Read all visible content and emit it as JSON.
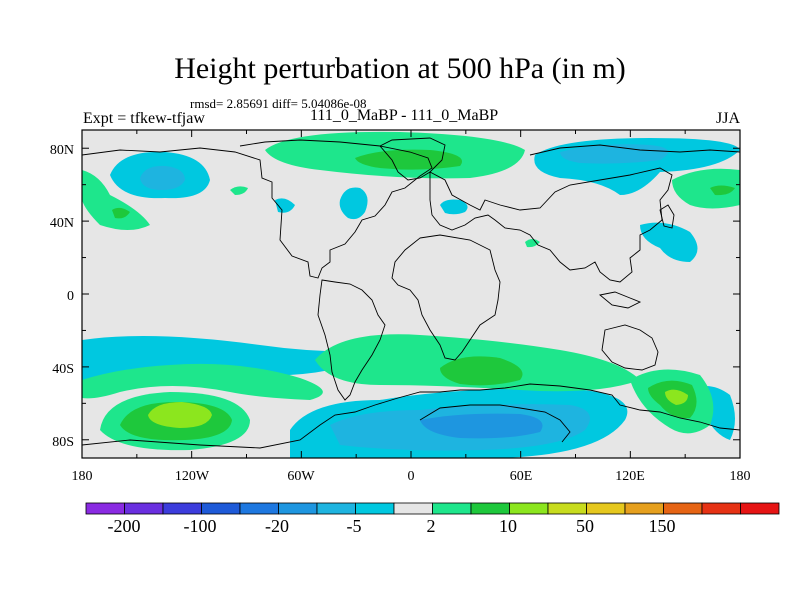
{
  "title": "Height perturbation at 500 hPa (in m)",
  "stats": "rmsd= 2.85691 diff= 5.04086e-08",
  "left_label": "Expt = tfkew-tfjaw",
  "center_label": "111_0_MaBP - 111_0_MaBP",
  "right_label": "JJA",
  "lat_ticks": [
    "80N",
    "40N",
    "0",
    "40S",
    "80S"
  ],
  "lon_ticks": [
    "180",
    "120W",
    "60W",
    "0",
    "60E",
    "120E",
    "180"
  ],
  "colorbar": {
    "colors": [
      "#8a2be2",
      "#6a2fe0",
      "#3c3cdc",
      "#1e5ad8",
      "#1e78e0",
      "#1e96e0",
      "#1eb4e0",
      "#00c8e0",
      "#e6e6e6",
      "#1ee68c",
      "#1ec83c",
      "#8ce61e",
      "#c8dc1e",
      "#e6c81e",
      "#e6a01e",
      "#e66414",
      "#e63214",
      "#e61414"
    ],
    "labels": [
      "-200",
      "-100",
      "-20",
      "-5",
      "2",
      "10",
      "50",
      "150"
    ]
  },
  "chart_data": {
    "type": "heatmap",
    "title": "Height perturbation at 500 hPa (in m)",
    "variable_units": "m",
    "level": "500 hPa",
    "season": "JJA",
    "rmsd": 2.85691,
    "diff": 5.04086e-08,
    "xlim": [
      -180,
      180
    ],
    "ylim": [
      -90,
      90
    ],
    "contour_levels": [
      -200,
      -100,
      -50,
      -20,
      -10,
      -5,
      -2,
      2,
      5,
      10,
      20,
      50,
      100,
      150,
      200
    ],
    "features": [
      {
        "lon": -138,
        "lat": 63,
        "value": -8,
        "sign": "negative"
      },
      {
        "lon": -30,
        "lat": 53,
        "value": -4,
        "sign": "negative"
      },
      {
        "lon": 25,
        "lat": 48,
        "value": -3,
        "sign": "negative"
      },
      {
        "lon": 100,
        "lat": 78,
        "value": -12,
        "sign": "negative"
      },
      {
        "lon": 140,
        "lat": 30,
        "value": -3,
        "sign": "negative"
      },
      {
        "lon": 20,
        "lat": -75,
        "value": -15,
        "sign": "negative"
      },
      {
        "lon": -60,
        "lat": -60,
        "value": -5,
        "sign": "negative"
      },
      {
        "lon": -140,
        "lat": -30,
        "value": -5,
        "sign": "negative"
      },
      {
        "lon": 5,
        "lat": 75,
        "value": 8,
        "sign": "positive"
      },
      {
        "lon": 170,
        "lat": 58,
        "value": 8,
        "sign": "positive"
      },
      {
        "lon": -155,
        "lat": 45,
        "value": 5,
        "sign": "positive"
      },
      {
        "lon": -130,
        "lat": -68,
        "value": 30,
        "sign": "positive"
      },
      {
        "lon": 45,
        "lat": -42,
        "value": 10,
        "sign": "positive"
      },
      {
        "lon": 142,
        "lat": -57,
        "value": 25,
        "sign": "positive"
      },
      {
        "lon": -10,
        "lat": -33,
        "value": 5,
        "sign": "positive"
      }
    ]
  }
}
